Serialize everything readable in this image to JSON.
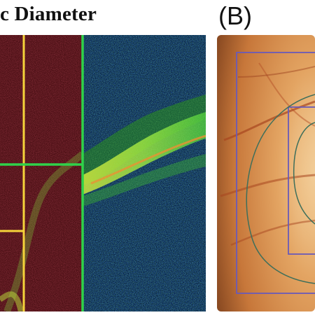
{
  "panel_a": {
    "title_text": "c Diameter",
    "colors": {
      "green_line": "#2fd24a",
      "yellow_line": "#f5d33a",
      "scan_bg": "#031a3f",
      "red_region": "#4a0f14"
    }
  },
  "panel_b": {
    "label": "(B)",
    "colors": {
      "box": "#6a5ab8",
      "contour": "#3e6f5b",
      "retina": "#d8924f"
    }
  }
}
